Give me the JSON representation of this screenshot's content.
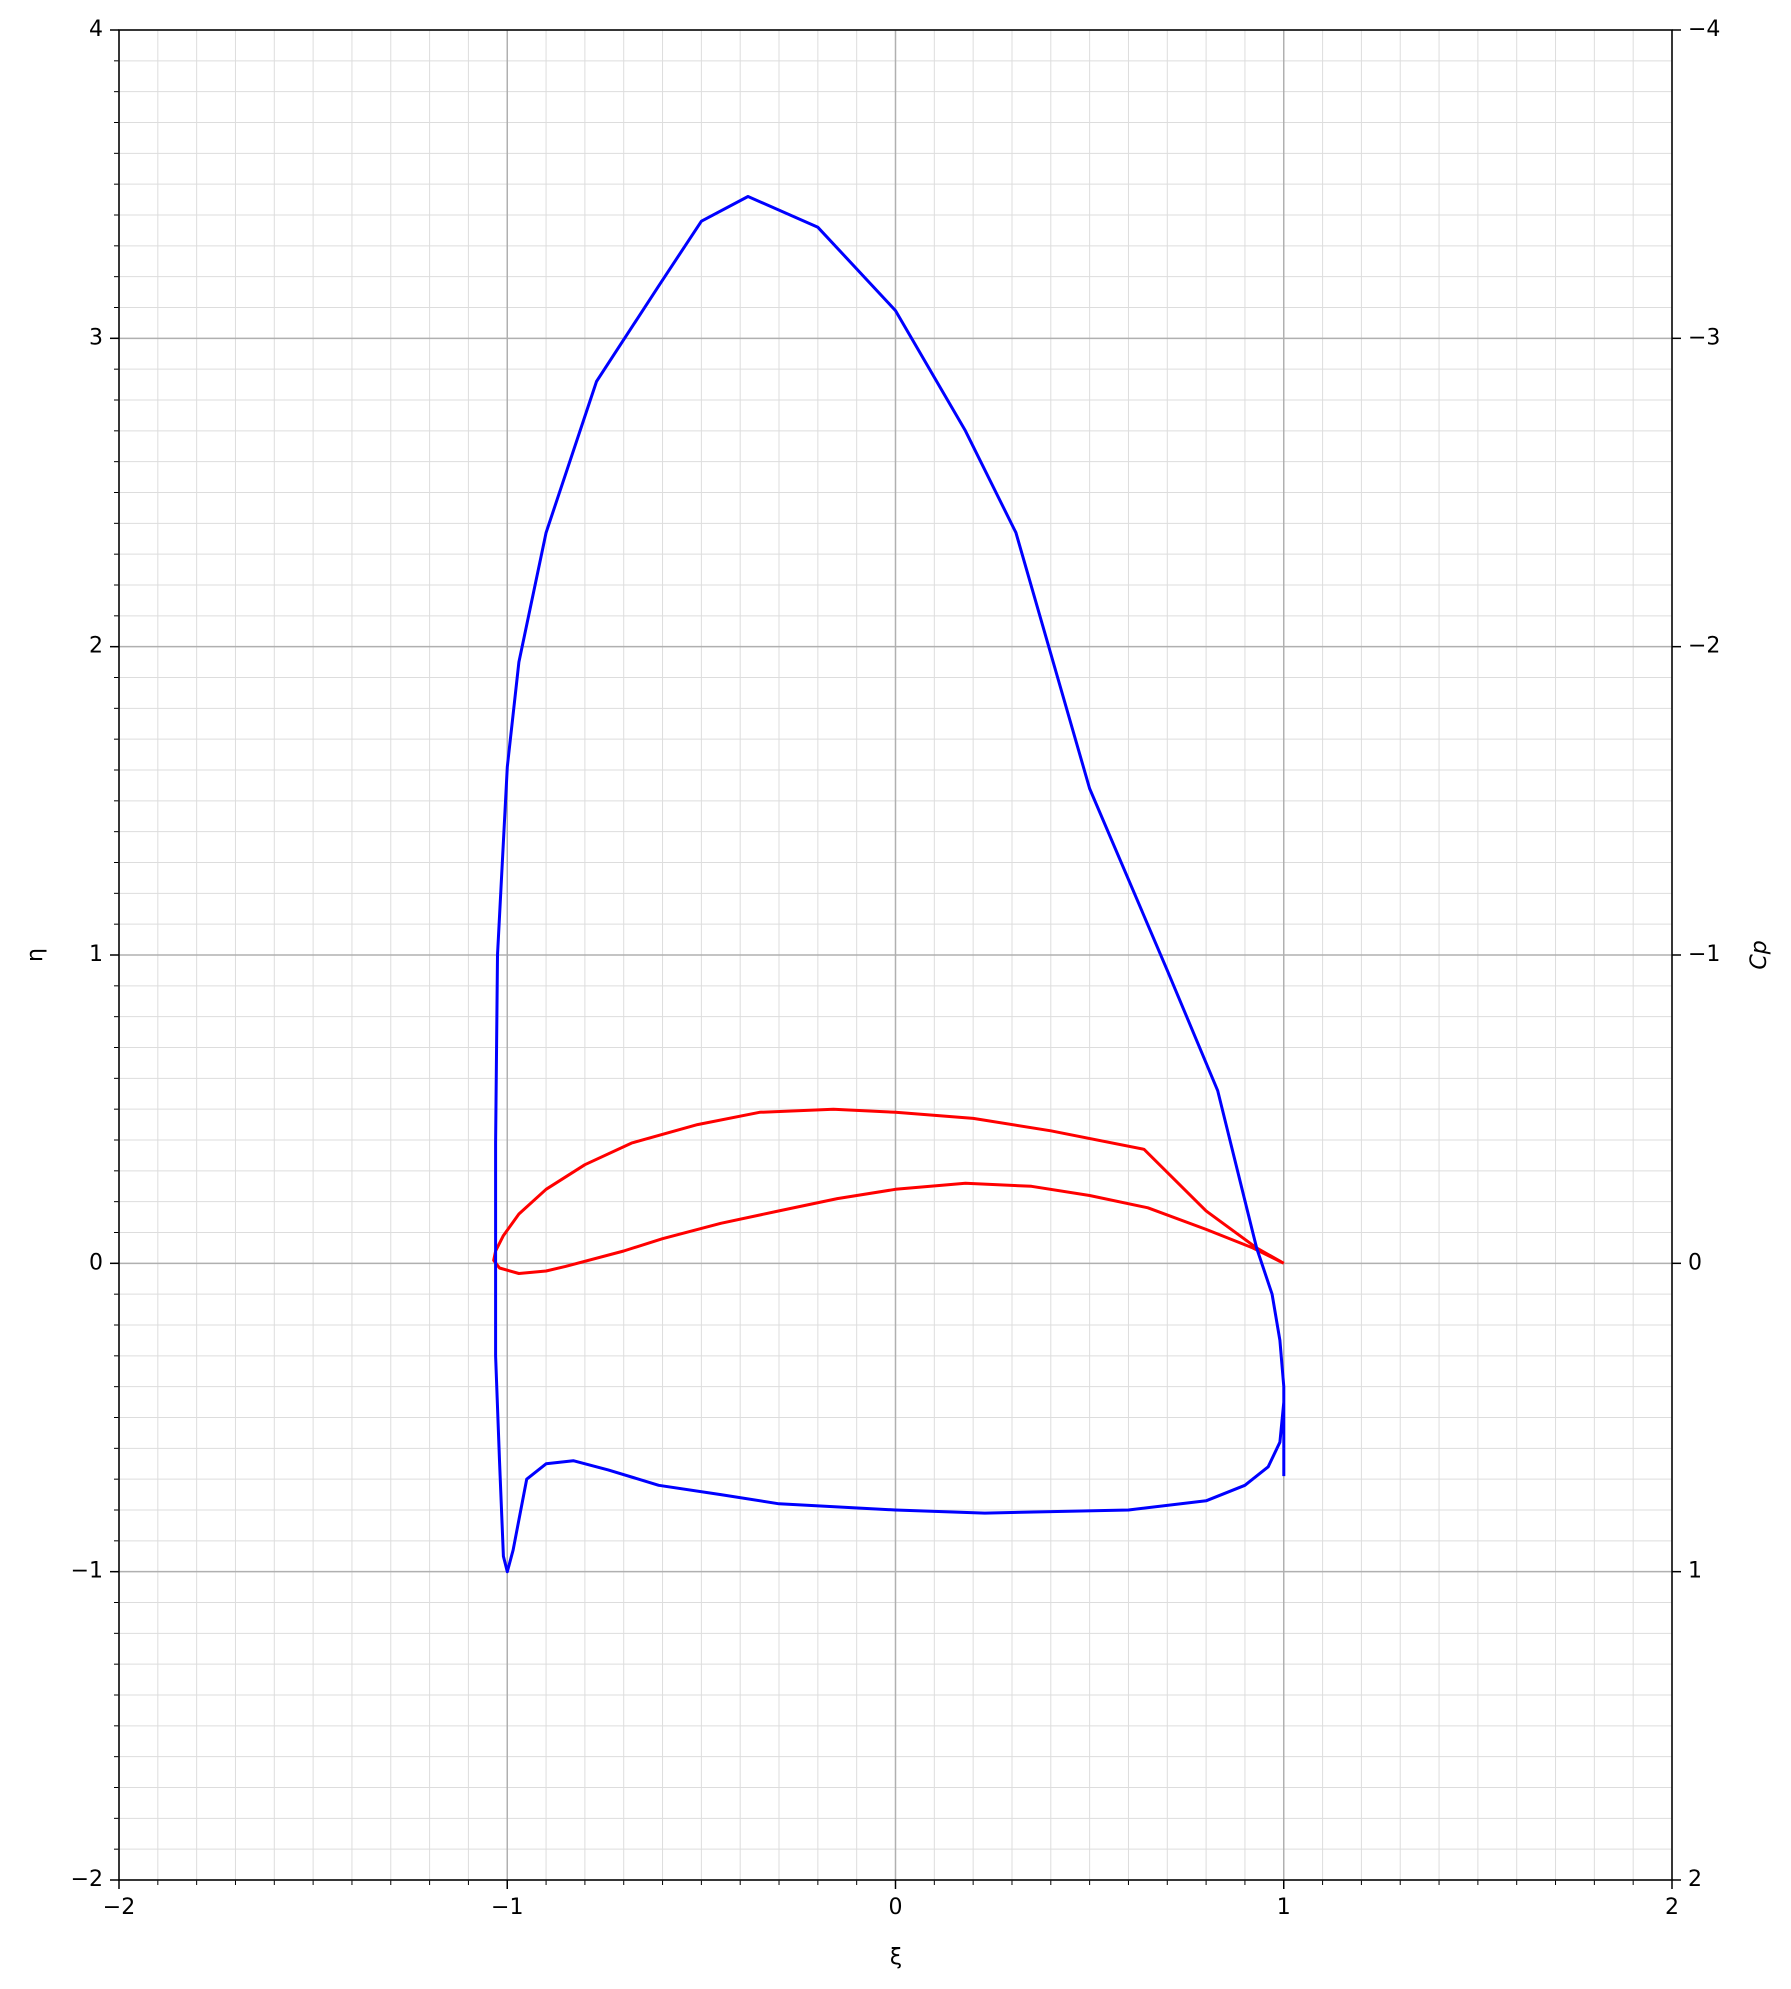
{
  "chart_data": {
    "type": "line",
    "xlabel": "ξ",
    "ylabel": "η",
    "y2label": "Cp",
    "xlim": [
      -2,
      2
    ],
    "ylim": [
      -2,
      4
    ],
    "y2lim": [
      2,
      -4
    ],
    "xticks": [
      {
        "value": -2,
        "label": "−2"
      },
      {
        "value": -1,
        "label": "−1"
      },
      0,
      1,
      2
    ],
    "yticks": [
      {
        "value": -2,
        "label": "−2"
      },
      {
        "value": -1,
        "label": "−1"
      },
      0,
      1,
      2,
      3,
      4
    ],
    "y2ticks": [
      {
        "value": -4,
        "label": "−4"
      },
      {
        "value": -3,
        "label": "−3"
      },
      {
        "value": -2,
        "label": "−2"
      },
      {
        "value": -1,
        "label": "−1"
      },
      0,
      1,
      2
    ],
    "grid": true,
    "minor_step": 0.1,
    "series": [
      {
        "color": "#ff0000",
        "x": [
          1.0,
          0.93,
          0.8,
          0.64,
          0.4,
          0.2,
          0.0,
          -0.16,
          -0.35,
          -0.51,
          -0.68,
          -0.8,
          -0.9,
          -0.97,
          -1.01,
          -1.03,
          -1.035,
          -1.02,
          -0.97,
          -0.9,
          -0.85,
          -0.7,
          -0.6,
          -0.45,
          -0.3,
          -0.15,
          0.0,
          0.18,
          0.35,
          0.5,
          0.65,
          0.8,
          0.92,
          1.0
        ],
        "y": [
          0.0,
          0.05,
          0.17,
          0.37,
          0.43,
          0.47,
          0.49,
          0.5,
          0.49,
          0.45,
          0.39,
          0.32,
          0.24,
          0.16,
          0.09,
          0.04,
          0.01,
          -0.015,
          -0.033,
          -0.025,
          -0.01,
          0.04,
          0.08,
          0.13,
          0.17,
          0.21,
          0.24,
          0.26,
          0.25,
          0.22,
          0.18,
          0.11,
          0.05,
          0.0
        ]
      },
      {
        "color": "#0000ff",
        "axis": "y2",
        "x": [
          1.0,
          1.0,
          0.99,
          0.97,
          0.93,
          0.83,
          0.7,
          0.5,
          0.31,
          0.18,
          0.0,
          -0.2,
          -0.38,
          -0.5,
          -0.61,
          -0.77,
          -0.9,
          -0.97,
          -1.0,
          -1.025,
          -1.03,
          -1.03,
          -1.03,
          -1.02,
          -1.01,
          -1.0,
          -0.985,
          -0.95,
          -0.9,
          -0.83,
          -0.74,
          -0.61,
          -0.45,
          -0.3,
          0.0,
          0.23,
          0.6,
          0.8,
          0.9,
          0.96,
          0.99,
          1.0
        ],
        "y": [
          0.69,
          0.4,
          0.25,
          0.1,
          -0.05,
          -0.56,
          -0.95,
          -1.54,
          -2.37,
          -2.7,
          -3.09,
          -3.36,
          -3.46,
          -3.38,
          -3.17,
          -2.86,
          -2.37,
          -1.95,
          -1.61,
          -1.0,
          -0.39,
          0.02,
          0.3,
          0.64,
          0.95,
          1.0,
          0.93,
          0.7,
          0.65,
          0.64,
          0.67,
          0.72,
          0.75,
          0.78,
          0.8,
          0.81,
          0.8,
          0.77,
          0.72,
          0.66,
          0.58,
          0.45
        ]
      }
    ]
  }
}
